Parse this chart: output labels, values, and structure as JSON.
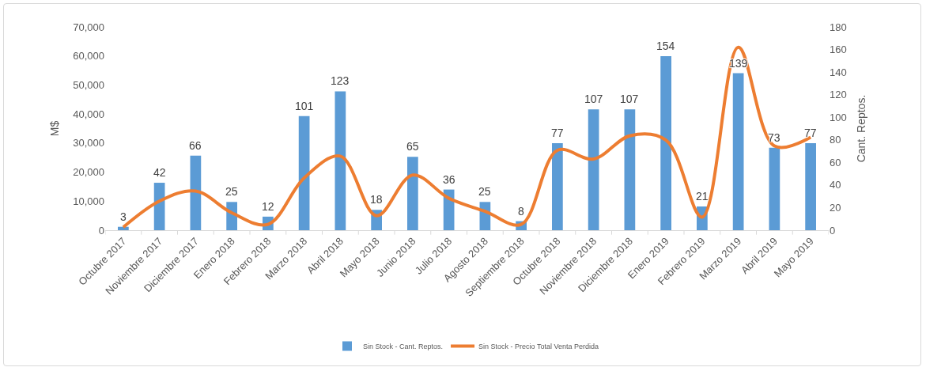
{
  "chart_data": {
    "type": "bar",
    "categories": [
      "Octubre 2017",
      "Noviembre 2017",
      "Diciembre 2017",
      "Enero 2018",
      "Febrero 2018",
      "Marzo 2018",
      "Abril 2018",
      "Mayo 2018",
      "Junio 2018",
      "Julio 2018",
      "Agosto 2018",
      "Septiembre 2018",
      "Octubre 2018",
      "Noviembre 2018",
      "Diciembre 2018",
      "Enero 2019",
      "Febrero 2019",
      "Marzo 2019",
      "Abril 2019",
      "Mayo 2019"
    ],
    "ylabel": "M$",
    "y2label": "Cant. Reptos.",
    "ylim": [
      0,
      70000
    ],
    "yticks": [
      0,
      {
        "value": 10000,
        "label": "10,000"
      },
      {
        "value": 20000,
        "label": "20,000"
      },
      {
        "value": 30000,
        "label": "30,000"
      },
      {
        "value": 40000,
        "label": "40,000"
      },
      {
        "value": 50000,
        "label": "50,000"
      },
      {
        "value": 60000,
        "label": "60,000"
      },
      {
        "value": 70000,
        "label": "70,000"
      }
    ],
    "y2lim": [
      0,
      180
    ],
    "y2ticks": [
      0,
      20,
      40,
      60,
      80,
      100,
      120,
      140,
      160,
      180
    ],
    "series": [
      {
        "name": "Sin Stock - Cant. Reptos.",
        "axis": "y2",
        "color": "#5b9bd5",
        "data_labels": true,
        "values": [
          3,
          42,
          66,
          25,
          12,
          101,
          123,
          18,
          65,
          36,
          25,
          8,
          77,
          107,
          107,
          154,
          21,
          139,
          73,
          77
        ]
      },
      {
        "name": "Sin Stock - Precio Total Venta Perdida",
        "type": "line",
        "color": "#ed7d31",
        "values": [
          1000,
          10000,
          13500,
          6000,
          2000,
          18000,
          25500,
          5000,
          19000,
          11000,
          6500,
          2000,
          27500,
          24500,
          32500,
          31000,
          4500,
          63000,
          29000,
          32000
        ]
      }
    ],
    "legend": "bottom"
  }
}
